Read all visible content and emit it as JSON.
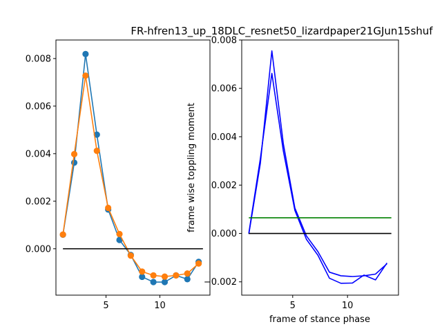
{
  "chart_data": [
    {
      "type": "line",
      "title": "",
      "xlabel": "",
      "ylabel": "",
      "xlim": [
        0.35,
        14.65
      ],
      "ylim": [
        -0.00195,
        0.00878
      ],
      "xticks": [
        5,
        10
      ],
      "yticks": [
        0.0,
        0.002,
        0.004,
        0.006,
        0.008
      ],
      "ytick_labels": [
        "0.000",
        "0.002",
        "0.004",
        "0.006",
        "0.008"
      ],
      "series": [
        {
          "color": "#1f77b4",
          "marker": "circle",
          "x": [
            1,
            2.05,
            3.1,
            4.15,
            5.2,
            6.25,
            7.3,
            8.35,
            9.4,
            10.45,
            11.5,
            12.55,
            13.6
          ],
          "y": [
            0.00059,
            0.00362,
            0.00819,
            0.0048,
            0.00165,
            0.00037,
            -0.00026,
            -0.00118,
            -0.0014,
            -0.0014,
            -0.00112,
            -0.00128,
            -0.00055
          ]
        },
        {
          "color": "#ff7f0e",
          "marker": "circle",
          "x": [
            1,
            2.05,
            3.1,
            4.15,
            5.2,
            6.25,
            7.3,
            8.35,
            9.4,
            10.45,
            11.5,
            12.55,
            13.6
          ],
          "y": [
            0.0006,
            0.00398,
            0.00728,
            0.00412,
            0.00172,
            0.00062,
            -0.00029,
            -0.00096,
            -0.00112,
            -0.00117,
            -0.00112,
            -0.00104,
            -0.00062
          ]
        },
        {
          "color": "#000000",
          "marker": "none",
          "x": [
            1,
            14
          ],
          "y": [
            0,
            0
          ]
        }
      ]
    },
    {
      "type": "line",
      "title": "FR-hfren13_up_18DLC_resnet50_lizardpaper21GJun15shuf",
      "xlabel": "frame of stance phase",
      "ylabel": "frame wise toppling moment",
      "xlim": [
        0.35,
        14.65
      ],
      "ylim": [
        -0.00255,
        0.008
      ],
      "xticks": [
        5,
        10
      ],
      "yticks": [
        -0.002,
        0.0,
        0.002,
        0.004,
        0.006,
        0.008
      ],
      "ytick_labels": [
        "−0.002",
        "0.000",
        "0.002",
        "0.004",
        "0.006",
        "0.008"
      ],
      "series": [
        {
          "color": "#0000ff",
          "marker": "none",
          "x": [
            1,
            2.05,
            3.1,
            4.15,
            5.2,
            6.25,
            7.3,
            8.35,
            9.4,
            10.45,
            11.5,
            12.55,
            13.6
          ],
          "y": [
            -2e-05,
            0.0029,
            0.00755,
            0.0037,
            0.00105,
            -0.0001,
            -0.00075,
            -0.0016,
            -0.00175,
            -0.00178,
            -0.00175,
            -0.00168,
            -0.00125
          ]
        },
        {
          "color": "#0000ff",
          "marker": "none",
          "x": [
            1,
            2.05,
            3.1,
            4.15,
            5.2,
            6.25,
            7.3,
            8.35,
            9.4,
            10.45,
            11.5,
            12.55,
            13.6
          ],
          "y": [
            2e-05,
            0.0031,
            0.00662,
            0.0034,
            0.00095,
            -0.00024,
            -0.0009,
            -0.00185,
            -0.00206,
            -0.00205,
            -0.00172,
            -0.00192,
            -0.00122
          ]
        },
        {
          "color": "#008000",
          "marker": "none",
          "x": [
            1,
            14
          ],
          "y": [
            0.00065,
            0.00065
          ]
        },
        {
          "color": "#000000",
          "marker": "none",
          "x": [
            1,
            14
          ],
          "y": [
            0,
            0
          ]
        }
      ]
    }
  ]
}
